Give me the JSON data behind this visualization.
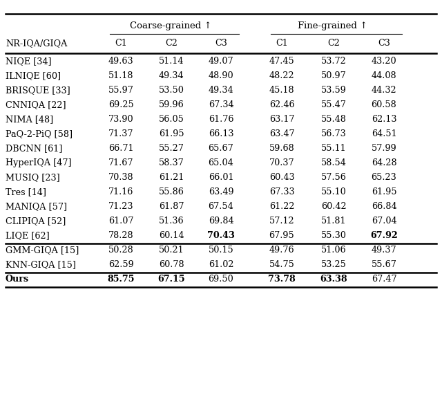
{
  "rows": [
    [
      "NIQE [34]",
      "49.63",
      "51.14",
      "49.07",
      "47.45",
      "53.72",
      "43.20"
    ],
    [
      "ILNIQE [60]",
      "51.18",
      "49.34",
      "48.90",
      "48.22",
      "50.97",
      "44.08"
    ],
    [
      "BRISQUE [33]",
      "55.97",
      "53.50",
      "49.34",
      "45.18",
      "53.59",
      "44.32"
    ],
    [
      "CNNIQA [22]",
      "69.25",
      "59.96",
      "67.34",
      "62.46",
      "55.47",
      "60.58"
    ],
    [
      "NIMA [48]",
      "73.90",
      "56.05",
      "61.76",
      "63.17",
      "55.48",
      "62.13"
    ],
    [
      "PaQ-2-PiQ [58]",
      "71.37",
      "61.95",
      "66.13",
      "63.47",
      "56.73",
      "64.51"
    ],
    [
      "DBCNN [61]",
      "66.71",
      "55.27",
      "65.67",
      "59.68",
      "55.11",
      "57.99"
    ],
    [
      "HyperIQA [47]",
      "71.67",
      "58.37",
      "65.04",
      "70.37",
      "58.54",
      "64.28"
    ],
    [
      "MUSIQ [23]",
      "70.38",
      "61.21",
      "66.01",
      "60.43",
      "57.56",
      "65.23"
    ],
    [
      "Tres [14]",
      "71.16",
      "55.86",
      "63.49",
      "67.33",
      "55.10",
      "61.95"
    ],
    [
      "MANIQA [57]",
      "71.23",
      "61.87",
      "67.54",
      "61.22",
      "60.42",
      "66.84"
    ],
    [
      "CLIPIQA [52]",
      "61.07",
      "51.36",
      "69.84",
      "57.12",
      "51.81",
      "67.04"
    ],
    [
      "LIQE [62]",
      "78.28",
      "60.14",
      "70.43",
      "67.95",
      "55.30",
      "67.92"
    ]
  ],
  "separator_rows": [
    [
      "GMM-GIQA [15]",
      "50.28",
      "50.21",
      "50.15",
      "49.76",
      "51.06",
      "49.37"
    ],
    [
      "KNN-GIQA [15]",
      "62.59",
      "60.78",
      "61.02",
      "54.75",
      "53.25",
      "55.67"
    ]
  ],
  "ours_row": [
    "Ours",
    "85.75",
    "67.15",
    "69.50",
    "73.78",
    "63.38",
    "67.47"
  ],
  "bold_liqe": [
    2,
    5
  ],
  "bold_ours": [
    0,
    1,
    3,
    4
  ],
  "col_headers": [
    "C1",
    "C2",
    "C3",
    "C1",
    "C2",
    "C3"
  ],
  "coarse_label": "Coarse-grained ↑",
  "fine_label": "Fine-grained ↑",
  "nriqa_label": "NR-IQA/GIQA",
  "bg_color": "#ffffff",
  "text_color": "#000000",
  "font_size": 9.2
}
